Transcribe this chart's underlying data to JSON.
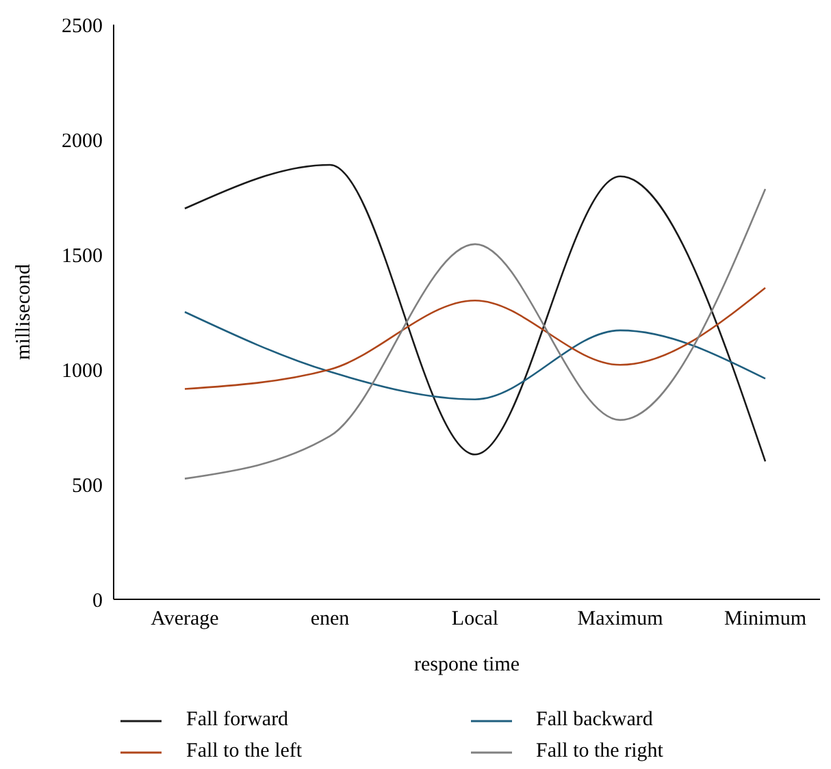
{
  "chart_data": {
    "type": "line",
    "xlabel": "respone time",
    "ylabel": "millisecond",
    "categories": [
      "Average",
      "enen",
      "Local",
      "Maximum",
      "Minimum"
    ],
    "ylim": [
      0,
      2500
    ],
    "yticks": [
      0,
      500,
      1000,
      1500,
      2000,
      2500
    ],
    "grid": false,
    "legend": "bottom",
    "marker": "none",
    "line_style": "solid",
    "series": [
      {
        "name": "Fall forward",
        "color": "#1a1a1a",
        "values": [
          1700,
          1890,
          630,
          1840,
          600
        ]
      },
      {
        "name": "Fall backward",
        "color": "#1f5f7f",
        "values": [
          1250,
          990,
          870,
          1170,
          960
        ]
      },
      {
        "name": "Fall to the left",
        "color": "#b0461a",
        "values": [
          915,
          1000,
          1300,
          1020,
          1355
        ]
      },
      {
        "name": "Fall to the right",
        "color": "#808080",
        "values": [
          525,
          710,
          1545,
          780,
          1785
        ]
      }
    ]
  }
}
